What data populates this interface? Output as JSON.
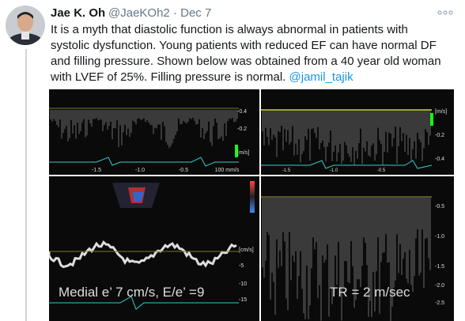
{
  "tweet": {
    "name": "Jae K. Oh",
    "handle": "@JaeKOh2",
    "date": "· Dec 7",
    "lines": [
      "It is a myth that diastolic function is always abnormal in patients with",
      "systolic dysfunction. Young patients with reduced EF can have normal DF",
      "and filling pressure. Shown below was obtained from a 40 year old woman",
      "with LVEF of 25%. Filling pressure is normal."
    ],
    "mention": "@jamil_tajik",
    "image": {
      "top_left": {
        "y_labels": [
          "-0.4",
          "-0.2",
          "[m/s]"
        ],
        "x_labels": [
          "-1.5",
          "-1.0",
          "-0.5",
          "100 mm/s"
        ]
      },
      "top_right": {
        "y_labels": [
          "[m/s]",
          "-0.2",
          "-0.4"
        ],
        "x_labels": [
          "-1.5",
          "-1.0",
          "-0.5"
        ]
      },
      "bottom_left": {
        "y_labels": [
          "[cm/s]",
          "-5",
          "-10",
          "-15"
        ],
        "caption": "Medial e’  7 cm/s, E/e’ =9"
      },
      "bottom_right": {
        "y_labels": [
          "-0.5",
          "-1.0",
          "-1.5",
          "-2.0",
          "-2.5"
        ],
        "caption": "TR = 2 m/sec"
      }
    }
  }
}
